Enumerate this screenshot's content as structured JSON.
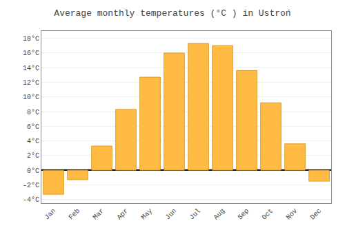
{
  "chart_data": {
    "type": "bar",
    "title": "Average monthly temperatures (°C ) in Ustroń",
    "categories": [
      "Jan",
      "Feb",
      "Mar",
      "Apr",
      "May",
      "Jun",
      "Jul",
      "Aug",
      "Sep",
      "Oct",
      "Nov",
      "Dec"
    ],
    "values": [
      -3.3,
      -1.3,
      3.3,
      8.3,
      12.7,
      16.0,
      17.3,
      17.0,
      13.6,
      9.2,
      3.6,
      -1.5
    ],
    "color": "#FFBB44",
    "ylim": [
      -4.5,
      19
    ],
    "yticks": [
      {
        "value": -4,
        "label": "-4°C"
      },
      {
        "value": -2,
        "label": "-2°C"
      },
      {
        "value": 0,
        "label": "0°C"
      },
      {
        "value": 2,
        "label": "2°C"
      },
      {
        "value": 4,
        "label": "4°C"
      },
      {
        "value": 6,
        "label": "6°C"
      },
      {
        "value": 8,
        "label": "8°C"
      },
      {
        "value": 10,
        "label": "10°C"
      },
      {
        "value": 12,
        "label": "12°C"
      },
      {
        "value": 14,
        "label": "14°C"
      },
      {
        "value": 16,
        "label": "16°C"
      },
      {
        "value": 18,
        "label": "18°C"
      }
    ],
    "grid": true
  }
}
